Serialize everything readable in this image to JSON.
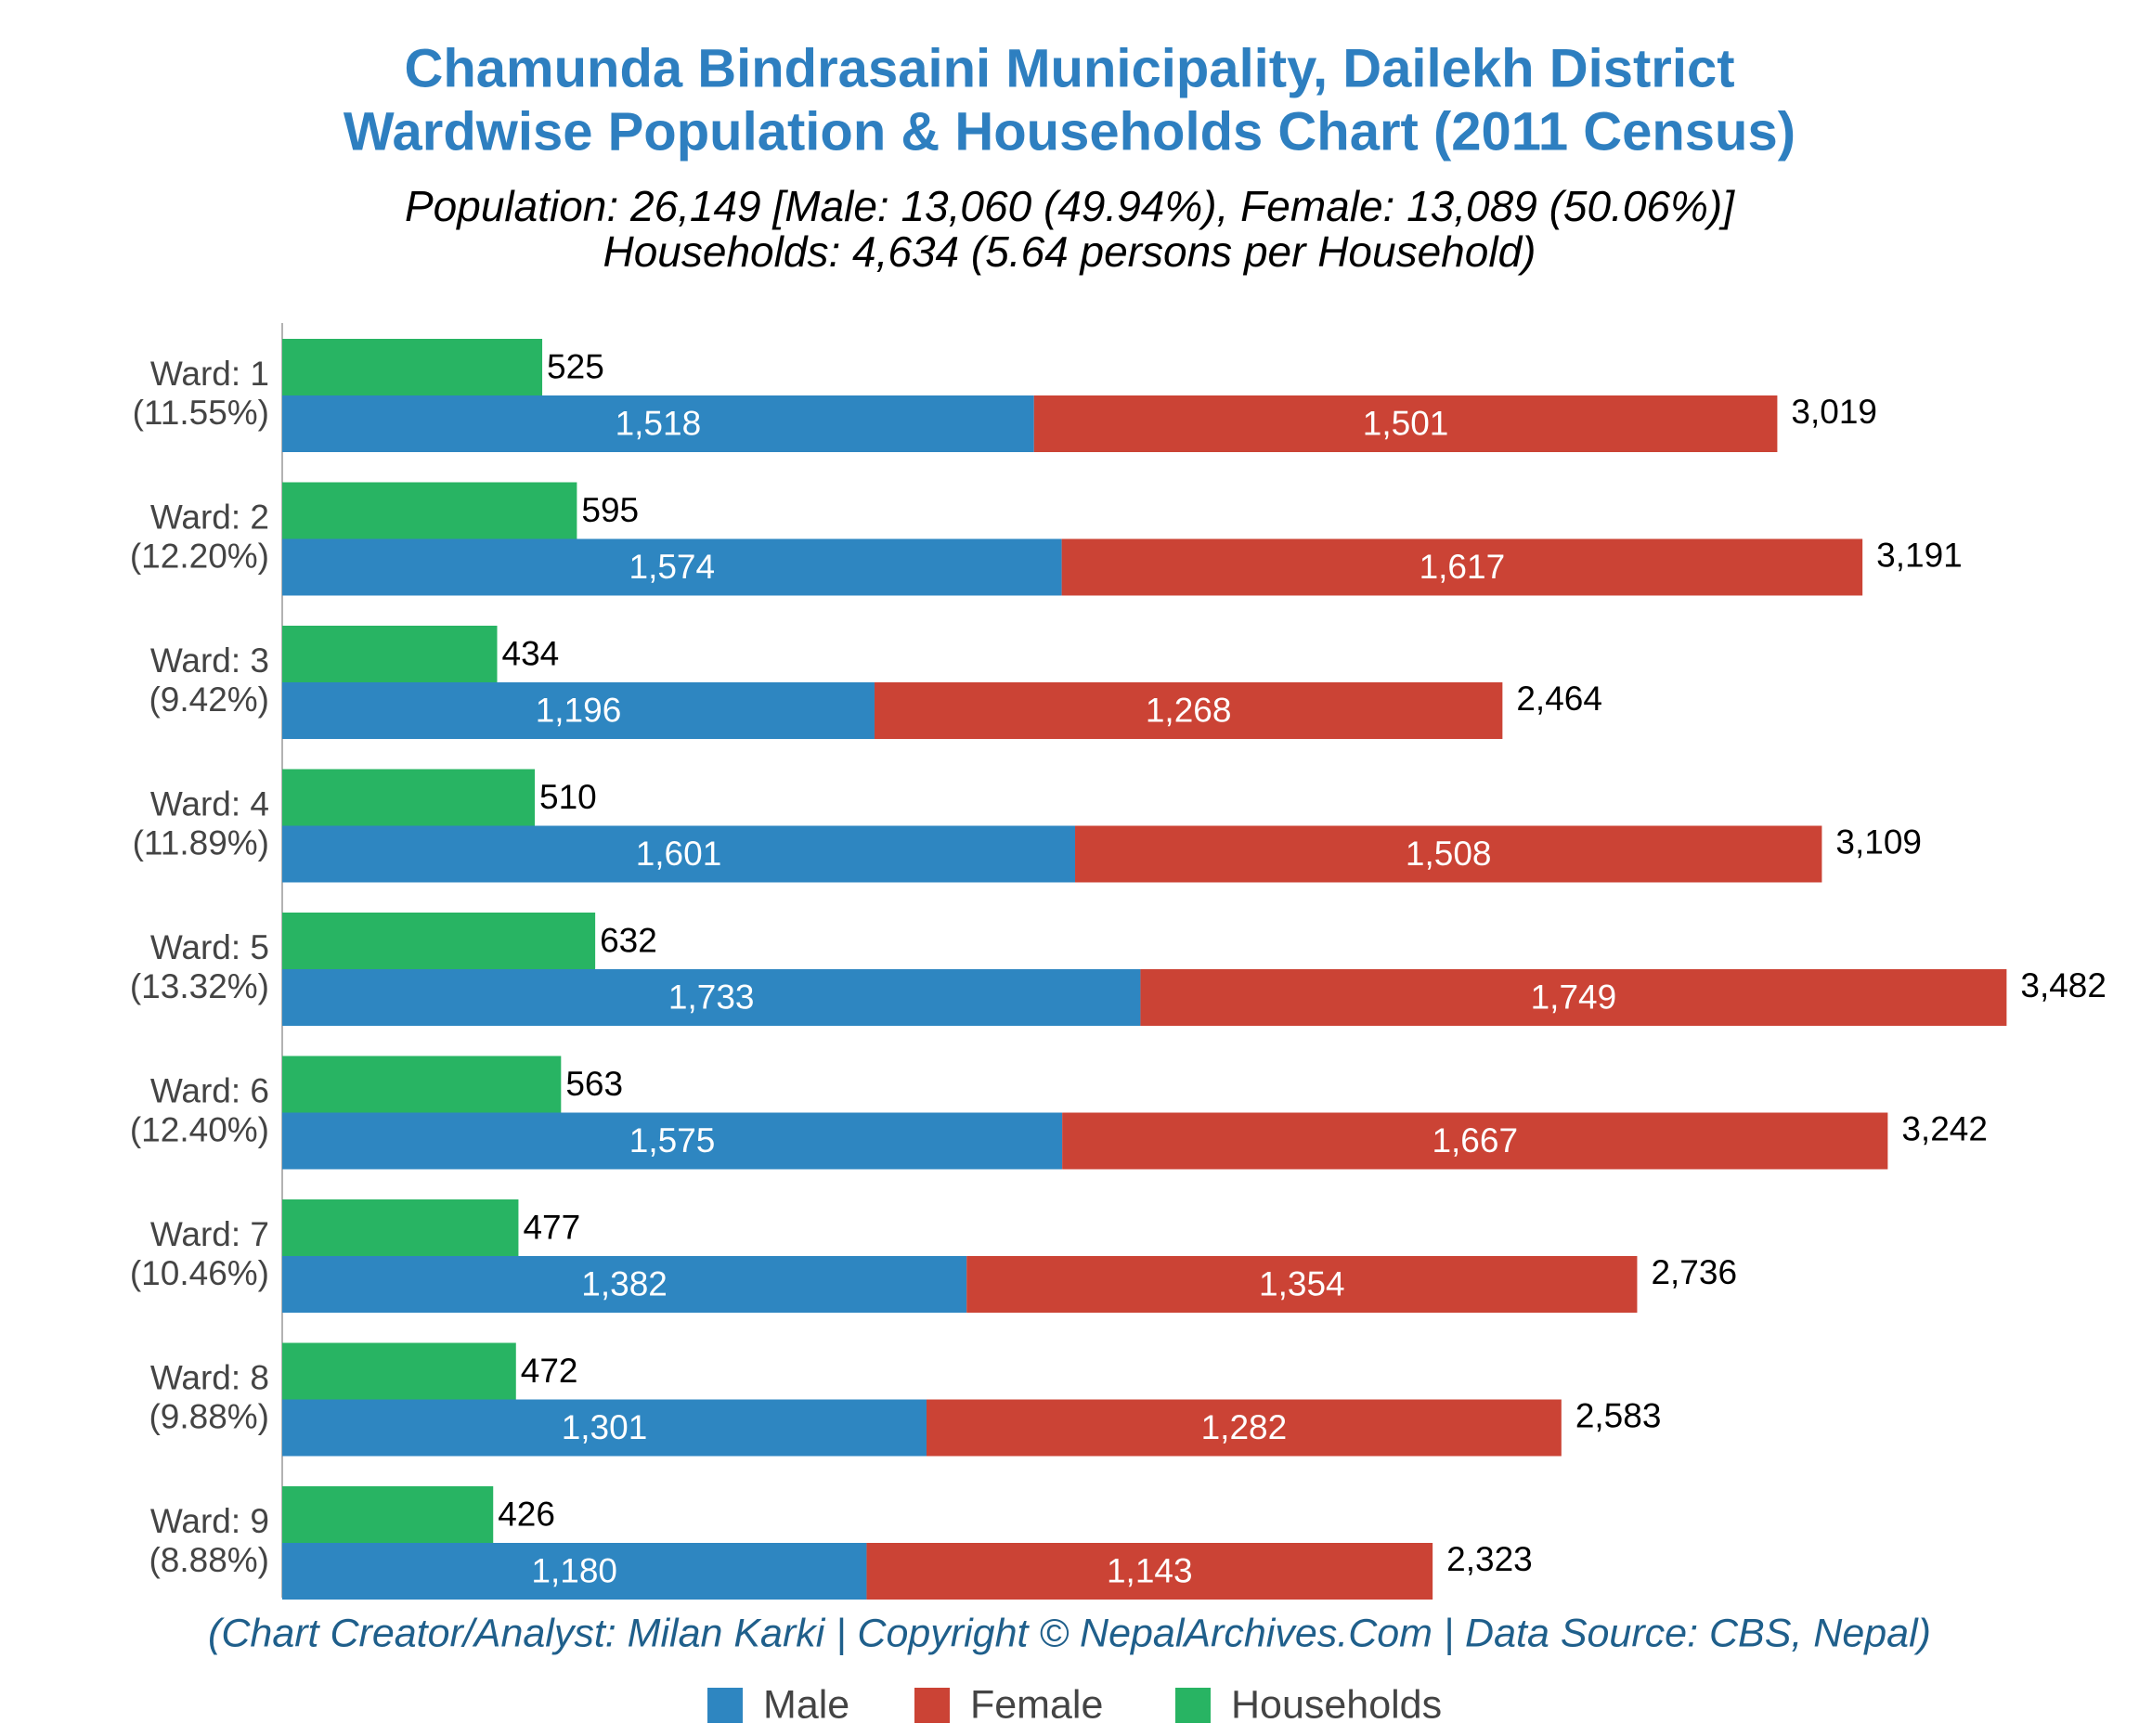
{
  "chart_data": {
    "type": "hbar_stacked",
    "title": [
      "Chamunda Bindrasaini Municipality, Dailekh District",
      "Wardwise Population & Households Chart (2011 Census)"
    ],
    "subtitle": [
      "Population: 26,149 [Male: 13,060 (49.94%), Female: 13,089 (50.06%)]",
      "Households: 4,634 (5.64 persons per Household)"
    ],
    "note": "(Chart Creator/Analyst: Milan Karki | Copyright © NepalArchives.Com | Data Source: CBS, Nepal)",
    "categories": [
      [
        "Ward: 1",
        "(11.55%)"
      ],
      [
        "Ward: 2",
        "(12.20%)"
      ],
      [
        "Ward: 3",
        "(9.42%)"
      ],
      [
        "Ward: 4",
        "(11.89%)"
      ],
      [
        "Ward: 5",
        "(13.32%)"
      ],
      [
        "Ward: 6",
        "(12.40%)"
      ],
      [
        "Ward: 7",
        "(10.46%)"
      ],
      [
        "Ward: 8",
        "(9.88%)"
      ],
      [
        "Ward: 9",
        "(8.88%)"
      ]
    ],
    "series": [
      {
        "name": "Male",
        "color": "#2e86c1",
        "stack": "population",
        "values": [
          1518,
          1574,
          1196,
          1601,
          1733,
          1575,
          1382,
          1301,
          1180
        ],
        "value_labels": [
          "1,518",
          "1,574",
          "1,196",
          "1,601",
          "1,733",
          "1,575",
          "1,382",
          "1,301",
          "1,180"
        ]
      },
      {
        "name": "Female",
        "color": "#cb4335",
        "stack": "population",
        "values": [
          1501,
          1617,
          1268,
          1508,
          1749,
          1667,
          1354,
          1282,
          1143
        ],
        "value_labels": [
          "1,501",
          "1,617",
          "1,268",
          "1,508",
          "1,749",
          "1,667",
          "1,354",
          "1,282",
          "1,143"
        ]
      },
      {
        "name": "Households",
        "color": "#28b463",
        "values": [
          525,
          595,
          434,
          510,
          632,
          563,
          477,
          472,
          426
        ]
      }
    ],
    "totals": {
      "values": [
        3019,
        3191,
        2464,
        3109,
        3482,
        3242,
        2736,
        2583,
        2323
      ],
      "value_labels": [
        "3,019",
        "3,191",
        "2,464",
        "3,109",
        "3,482",
        "3,242",
        "2,736",
        "2,583",
        "2,323"
      ]
    },
    "xlim": [
      0,
      3650
    ],
    "legend": "bottom"
  }
}
